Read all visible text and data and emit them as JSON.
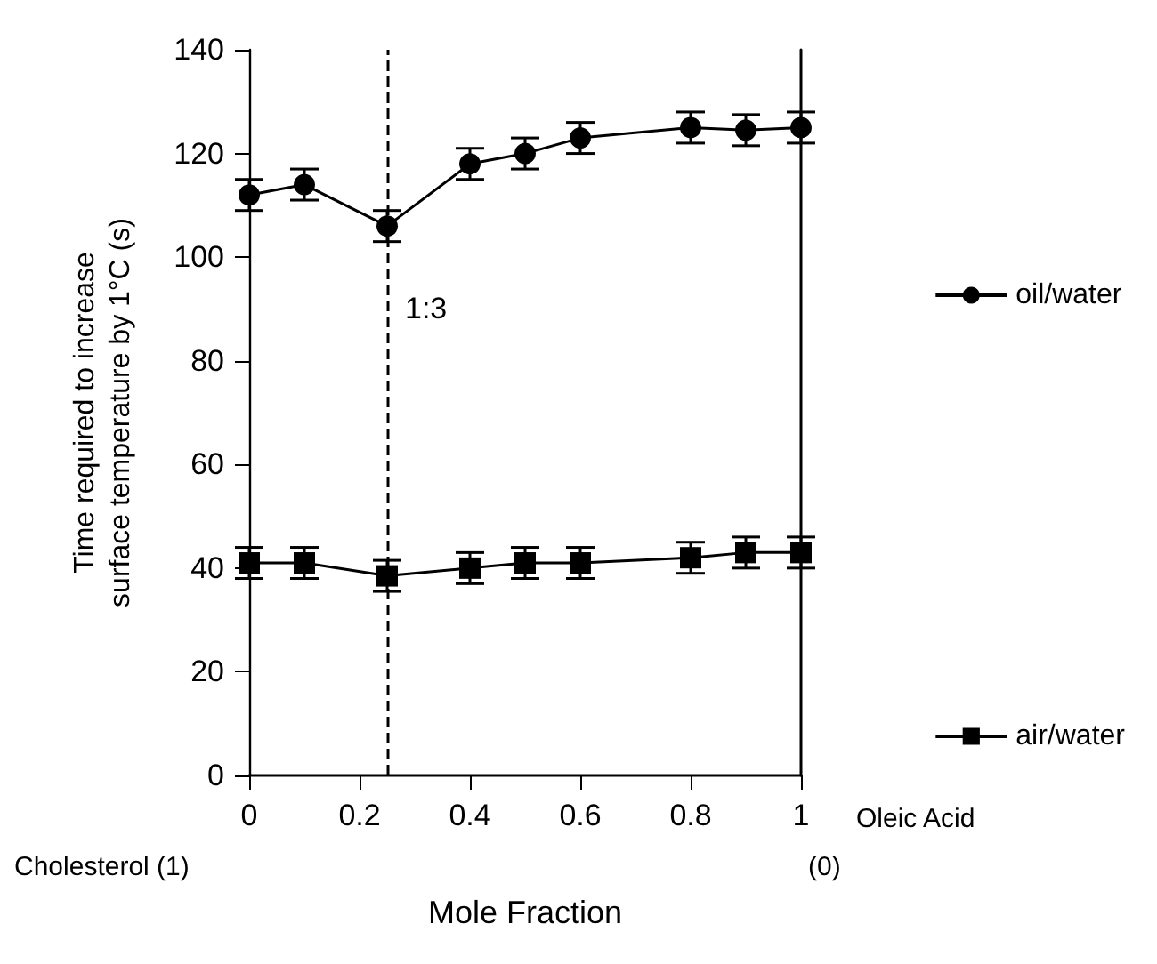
{
  "chart_data": {
    "type": "line",
    "xlabel": "Mole Fraction",
    "ylabel": "Time required to increase surface temperature by 1°C (s)",
    "x": [
      0,
      0.1,
      0.25,
      0.4,
      0.5,
      0.6,
      0.8,
      0.9,
      1
    ],
    "series": [
      {
        "name": "oil/water",
        "color": "#000000",
        "marker": "circle",
        "values": [
          112,
          114,
          106,
          118,
          120,
          123,
          125,
          124.5,
          125
        ],
        "errors": [
          3,
          3,
          3,
          3,
          3,
          3,
          3,
          3,
          3
        ]
      },
      {
        "name": "air/water",
        "color": "#000000",
        "marker": "square",
        "values": [
          41,
          41,
          38.5,
          40,
          41,
          41,
          42,
          43,
          43
        ],
        "errors": [
          3,
          3,
          3,
          3,
          3,
          3,
          3,
          3,
          3
        ]
      }
    ],
    "xlim": [
      0,
      1
    ],
    "xticks": [
      0,
      0.2,
      0.4,
      0.6,
      0.8,
      1
    ],
    "ylim": [
      0,
      140
    ],
    "yticks": [
      0,
      20,
      40,
      60,
      80,
      100,
      120,
      140
    ],
    "ref_lines": [
      {
        "axis": "x",
        "value": 0.25,
        "line_style": "dashed",
        "color": "#000000"
      }
    ],
    "annotations": [
      "Cholesterol (1)",
      "(0)",
      "Oleic Acid",
      {
        "text": "1:3",
        "x": 0.25,
        "y": 90
      }
    ],
    "legend": "right",
    "grid": false,
    "line_style": "solid"
  }
}
